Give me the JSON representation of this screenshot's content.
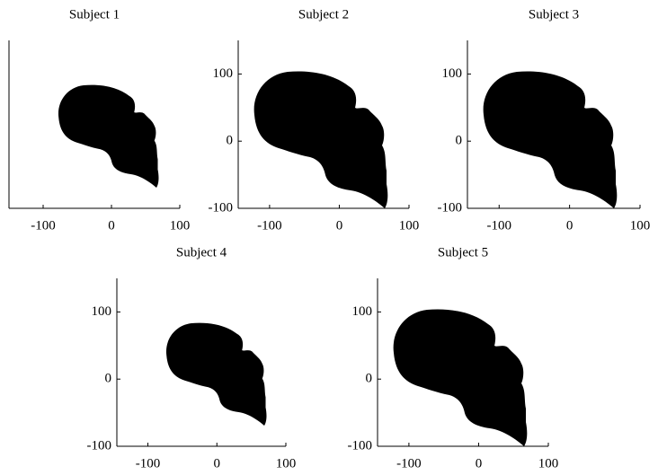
{
  "chart_data": [
    {
      "type": "line",
      "title": "Subject 1",
      "xlim": [
        -150,
        100
      ],
      "ylim": [
        -100,
        150
      ],
      "xticks": [
        -100,
        0,
        100
      ]
    },
    {
      "type": "line",
      "title": "Subject 2",
      "xlim": [
        -145,
        100
      ],
      "ylim": [
        -100,
        150
      ],
      "xticks": [
        -100,
        0,
        100
      ],
      "yticks": [
        -100,
        0,
        100
      ]
    },
    {
      "type": "line",
      "title": "Subject 3",
      "xlim": [
        -145,
        100
      ],
      "ylim": [
        -100,
        150
      ],
      "xticks": [
        -100,
        0,
        100
      ],
      "yticks": [
        -100,
        0,
        100
      ]
    },
    {
      "type": "line",
      "title": "Subject 4",
      "xlim": [
        -145,
        100
      ],
      "ylim": [
        -100,
        150
      ],
      "xticks": [
        -100,
        0,
        100
      ],
      "yticks": [
        -100,
        0,
        100
      ]
    },
    {
      "type": "line",
      "title": "Subject 5",
      "xlim": [
        -145,
        100
      ],
      "ylim": [
        -100,
        150
      ],
      "xticks": [
        -100,
        0,
        100
      ],
      "yticks": [
        -100,
        0,
        100
      ]
    }
  ]
}
